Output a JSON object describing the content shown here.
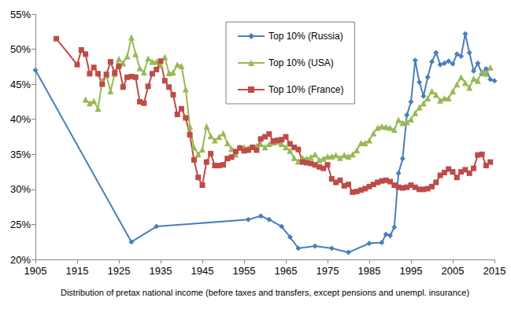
{
  "chart_data": {
    "type": "line",
    "x_label": "Distribution of pretax national income (before taxes and transfers, except pensions and unempl. insurance)",
    "xlim": [
      1905,
      2015
    ],
    "xticks": [
      1905,
      1915,
      1925,
      1935,
      1945,
      1955,
      1965,
      1975,
      1985,
      1995,
      2005,
      2015
    ],
    "ylim": [
      20,
      55
    ],
    "yticks": [
      {
        "value": 20,
        "label": "20%"
      },
      {
        "value": 25,
        "label": "25%"
      },
      {
        "value": 30,
        "label": "30%"
      },
      {
        "value": 35,
        "label": "35%"
      },
      {
        "value": 40,
        "label": "40%"
      },
      {
        "value": 45,
        "label": "45%"
      },
      {
        "value": 50,
        "label": "50%"
      },
      {
        "value": 55,
        "label": "55%"
      }
    ],
    "grid": false,
    "legend": "upper center",
    "series": [
      {
        "name": "Top 10% (Russia)",
        "color": "#4a7ebb",
        "marker": "diamond",
        "x": [
          1905,
          1928,
          1934,
          1956,
          1959,
          1961,
          1964,
          1966,
          1968,
          1972,
          1976,
          1980,
          1985,
          1988,
          1989,
          1990,
          1991,
          1992,
          1993,
          1994,
          1995,
          1996,
          1997,
          1998,
          1999,
          2000,
          2001,
          2002,
          2003,
          2004,
          2005,
          2006,
          2007,
          2008,
          2009,
          2010,
          2011,
          2012,
          2013,
          2014,
          2015
        ],
        "values": [
          47.0,
          22.5,
          24.7,
          25.7,
          26.2,
          25.7,
          24.7,
          23.2,
          21.6,
          21.9,
          21.6,
          21.0,
          22.3,
          22.4,
          23.6,
          23.4,
          24.6,
          32.3,
          34.4,
          40.6,
          42.5,
          48.4,
          45.3,
          43.3,
          46.0,
          48.2,
          49.5,
          47.8,
          48.0,
          48.3,
          47.9,
          49.3,
          49.0,
          52.2,
          49.5,
          46.9,
          48.0,
          46.5,
          47.2,
          45.7,
          45.5
        ]
      },
      {
        "name": "Top 10% (USA)",
        "color": "#98b954",
        "marker": "triangle",
        "x": [
          1917,
          1918,
          1919,
          1920,
          1921,
          1922,
          1923,
          1924,
          1925,
          1926,
          1927,
          1928,
          1929,
          1930,
          1931,
          1932,
          1933,
          1934,
          1935,
          1936,
          1937,
          1938,
          1939,
          1940,
          1941,
          1942,
          1943,
          1944,
          1945,
          1946,
          1947,
          1948,
          1949,
          1950,
          1951,
          1952,
          1953,
          1954,
          1955,
          1956,
          1957,
          1958,
          1959,
          1960,
          1961,
          1962,
          1963,
          1964,
          1965,
          1966,
          1967,
          1968,
          1969,
          1970,
          1971,
          1972,
          1973,
          1974,
          1975,
          1976,
          1977,
          1978,
          1979,
          1980,
          1981,
          1982,
          1983,
          1984,
          1985,
          1986,
          1987,
          1988,
          1989,
          1990,
          1991,
          1992,
          1993,
          1994,
          1995,
          1996,
          1997,
          1998,
          1999,
          2000,
          2001,
          2002,
          2003,
          2004,
          2005,
          2006,
          2007,
          2008,
          2009,
          2010,
          2011,
          2012,
          2013,
          2014
        ],
        "values": [
          42.8,
          42.3,
          42.6,
          41.5,
          45.5,
          46.3,
          44.0,
          46.5,
          48.6,
          48.0,
          49.0,
          51.7,
          49.3,
          47.3,
          46.7,
          48.7,
          48.2,
          48.2,
          47.7,
          48.9,
          46.6,
          46.7,
          47.8,
          47.6,
          44.3,
          39.0,
          36.0,
          35.0,
          35.7,
          39.0,
          37.6,
          37.0,
          37.5,
          38.0,
          36.6,
          35.8,
          35.0,
          36.0,
          36.0,
          35.9,
          36.0,
          36.2,
          36.5,
          36.0,
          36.5,
          36.7,
          36.8,
          36.5,
          36.0,
          35.5,
          34.5,
          34.0,
          34.5,
          34.4,
          34.6,
          35.0,
          34.2,
          34.4,
          34.7,
          34.7,
          34.9,
          34.5,
          34.9,
          34.7,
          35.0,
          35.6,
          36.6,
          36.6,
          37.0,
          38.0,
          38.8,
          39.0,
          38.9,
          38.8,
          38.5,
          39.9,
          39.5,
          39.6,
          40.0,
          40.9,
          41.7,
          42.3,
          43.0,
          44.0,
          43.5,
          42.7,
          43.0,
          43.0,
          44.0,
          45.0,
          46.0,
          45.2,
          44.5,
          45.8,
          45.5,
          46.8,
          46.5,
          47.4
        ]
      },
      {
        "name": "Top 10% (France)",
        "color": "#be4b48",
        "marker": "square",
        "x": [
          1910,
          1915,
          1916,
          1917,
          1918,
          1919,
          1920,
          1921,
          1922,
          1923,
          1924,
          1925,
          1926,
          1927,
          1928,
          1929,
          1930,
          1931,
          1932,
          1933,
          1934,
          1935,
          1936,
          1937,
          1938,
          1939,
          1940,
          1941,
          1942,
          1943,
          1944,
          1945,
          1946,
          1947,
          1948,
          1949,
          1950,
          1951,
          1952,
          1953,
          1954,
          1955,
          1956,
          1957,
          1958,
          1959,
          1960,
          1961,
          1962,
          1963,
          1964,
          1965,
          1966,
          1967,
          1968,
          1969,
          1970,
          1971,
          1972,
          1973,
          1974,
          1975,
          1976,
          1977,
          1978,
          1979,
          1980,
          1981,
          1982,
          1983,
          1984,
          1985,
          1986,
          1987,
          1988,
          1989,
          1990,
          1991,
          1992,
          1993,
          1994,
          1995,
          1996,
          1997,
          1998,
          1999,
          2000,
          2001,
          2002,
          2003,
          2004,
          2005,
          2006,
          2007,
          2008,
          2009,
          2010,
          2011,
          2012,
          2013,
          2014
        ],
        "values": [
          51.5,
          47.8,
          49.9,
          49.3,
          46.5,
          47.4,
          46.5,
          45.0,
          46.4,
          48.2,
          46.6,
          47.6,
          44.6,
          46.0,
          46.1,
          46.0,
          42.5,
          42.3,
          44.7,
          46.5,
          47.1,
          48.3,
          45.5,
          44.6,
          43.5,
          40.7,
          41.5,
          40.2,
          37.8,
          34.2,
          31.7,
          30.6,
          33.9,
          35.1,
          33.4,
          33.4,
          33.5,
          34.4,
          34.6,
          35.4,
          35.9,
          35.5,
          35.6,
          36.0,
          35.6,
          37.2,
          37.5,
          37.9,
          36.9,
          37.0,
          37.1,
          37.5,
          36.5,
          36.0,
          35.7,
          33.9,
          33.8,
          33.7,
          33.5,
          33.2,
          33.0,
          33.5,
          31.5,
          31.0,
          31.3,
          30.5,
          30.7,
          29.6,
          29.7,
          29.9,
          30.1,
          30.4,
          30.7,
          31.0,
          31.2,
          31.3,
          31.1,
          30.6,
          30.3,
          30.2,
          30.3,
          30.6,
          30.3,
          30.0,
          30.0,
          30.1,
          30.4,
          31.0,
          32.0,
          32.4,
          32.9,
          32.5,
          31.7,
          32.5,
          32.8,
          32.3,
          33.0,
          34.9,
          35.0,
          33.4,
          33.9
        ]
      }
    ]
  }
}
